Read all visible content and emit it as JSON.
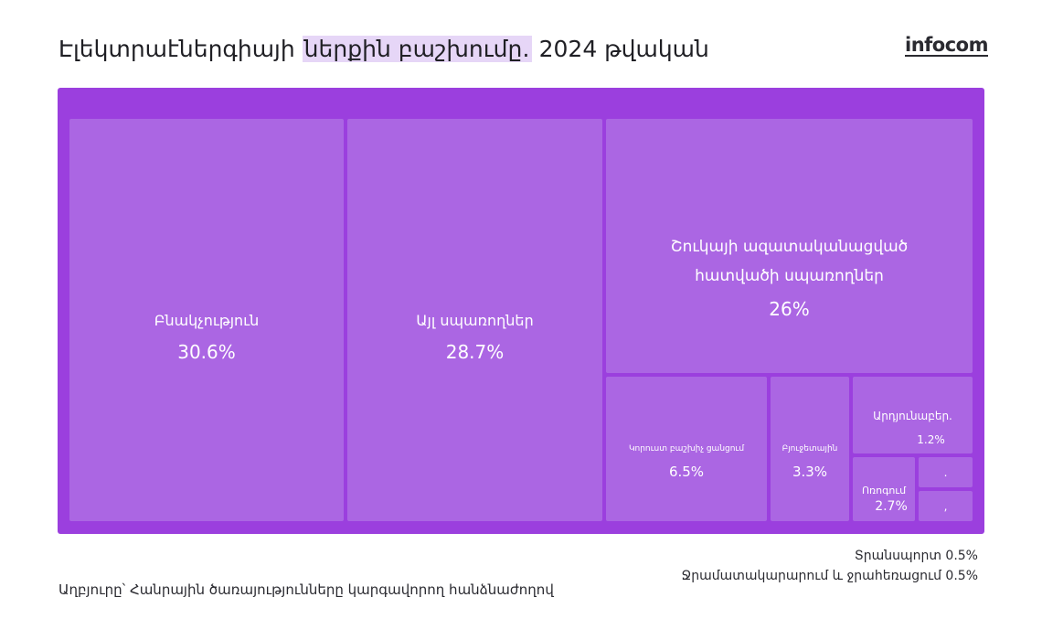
{
  "title": {
    "prefix": "Էլեկտրաէներգիայի",
    "highlight": "ներքին բաշխումը․",
    "suffix": "2024 թվական"
  },
  "logo": "infocom",
  "colors": {
    "frame": "#9b3fde",
    "tile": "#ab66e3",
    "highlight": "#e6d6f7"
  },
  "chart_data": {
    "type": "treemap",
    "title": "Էլեկտրաէներգիայի ներքին բաշխումը․ 2024 թվական",
    "unit": "%",
    "items": [
      {
        "label": "Բնակչություն",
        "value": 30.6,
        "value_label": "30.6%"
      },
      {
        "label": "Այլ սպառողներ",
        "value": 28.7,
        "value_label": "28.7%"
      },
      {
        "label_line1": "Շուկայի ազատականացված",
        "label_line2": "հատվածի սպառողներ",
        "value": 26,
        "value_label": "26%"
      },
      {
        "label": "Կորուստ բաշխիչ ցանցում",
        "value": 6.5,
        "value_label": "6.5%"
      },
      {
        "label": "Բյուջետային",
        "value": 3.3,
        "value_label": "3.3%"
      },
      {
        "label": "Արդյունաբեր.",
        "value": 1.2,
        "value_label": "1.2%"
      },
      {
        "label": "Ոռոգում",
        "value": 2.7,
        "value_label": "2.7%"
      },
      {
        "label": ".",
        "value": 0.5
      },
      {
        "label": ",",
        "value": 0.5
      }
    ],
    "outside_labels": [
      {
        "label": "Տրանսպորտ 0.5%"
      },
      {
        "label": "Ջրամատակարարում և ջրահեռացում 0.5%"
      }
    ]
  },
  "footer": {
    "source": "Աղբյուրը՝ Հանրային ծառայությունները կարգավորող հանձնաժողով"
  }
}
